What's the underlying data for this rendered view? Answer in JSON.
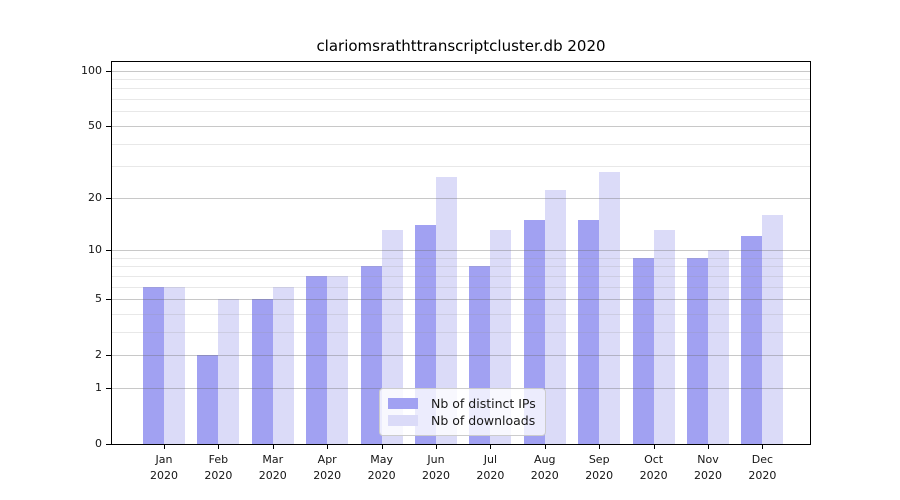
{
  "chart_data": {
    "type": "bar",
    "title": "clariomsrathttranscriptcluster.db 2020",
    "categories": [
      "Jan",
      "Feb",
      "Mar",
      "Apr",
      "May",
      "Jun",
      "Jul",
      "Aug",
      "Sep",
      "Oct",
      "Nov",
      "Dec"
    ],
    "year": "2020",
    "series": [
      {
        "name": "Nb of distinct IPs",
        "color": "#a1a1f2",
        "values": [
          6,
          2,
          5,
          7,
          8,
          14,
          8,
          15,
          15,
          9,
          9,
          12
        ]
      },
      {
        "name": "Nb of downloads",
        "color": "#dbdbf8",
        "values": [
          6,
          5,
          6,
          7,
          13,
          26,
          13,
          22,
          28,
          13,
          10,
          16
        ]
      }
    ],
    "xlabel": "",
    "ylabel": "",
    "yscale": "log1p",
    "y_ticks": [
      0,
      1,
      2,
      5,
      10,
      20,
      50,
      100
    ],
    "y_minor_gridlines": [
      3,
      4,
      6,
      7,
      8,
      9,
      30,
      40,
      60,
      70,
      80,
      90
    ],
    "ylim": [
      0,
      111
    ],
    "grid": true,
    "legend_position": "lower center"
  }
}
